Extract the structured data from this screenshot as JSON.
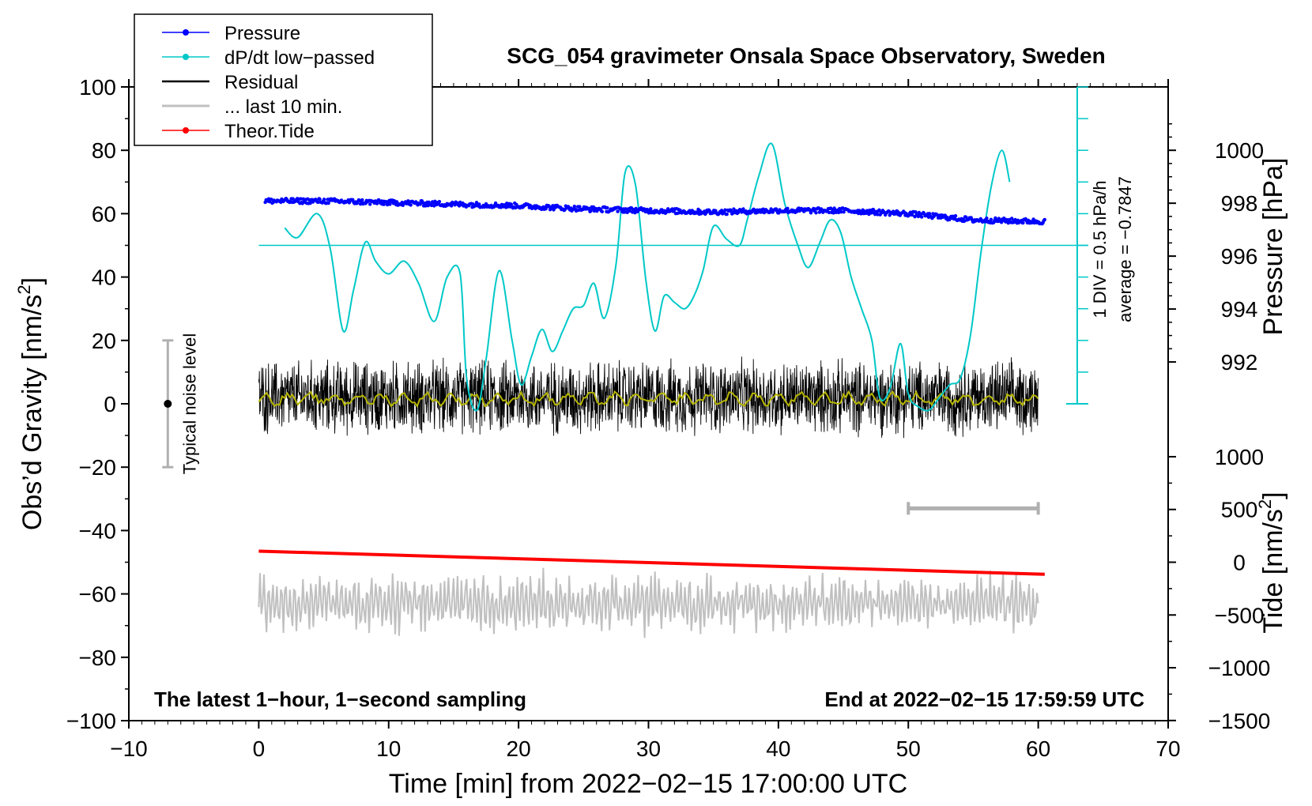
{
  "chart_data": {
    "type": "line",
    "title": "SCG_054 gravimeter Onsala Space Observatory, Sweden",
    "xlabel": "Time [min] from 2022−02−15 17:00:00 UTC",
    "ylabel_main": "Obs’d Gravity [nm/s",
    "ylabel_sup": "2",
    "ylabel_tail": "]",
    "ylabel_right_top": "Pressure [hPa]",
    "ylabel_right_bottom": "Tide [nm/s",
    "ylabel_right_bottom_sup": "2",
    "ylabel_right_bottom_tail": "]",
    "xlim": [
      -10,
      70
    ],
    "ylim": [
      -100,
      100
    ],
    "x_ticks": [
      "−10",
      "0",
      "10",
      "20",
      "30",
      "40",
      "50",
      "60",
      "70"
    ],
    "y_ticks": [
      "−100",
      "−80",
      "−60",
      "−40",
      "−20",
      "0",
      "20",
      "40",
      "60",
      "80",
      "100"
    ],
    "pressure_axis": {
      "ticks": [
        "1000",
        "998",
        "996",
        "994",
        "992"
      ],
      "values": [
        1000,
        998,
        996,
        994,
        992
      ],
      "ref_value": 1000,
      "ref_y": 80,
      "gravity_per_hpa": 10
    },
    "tide_axis": {
      "ticks": [
        "1000",
        "500",
        "0",
        "−500",
        "−1000",
        "−1500"
      ],
      "values": [
        1000,
        500,
        0,
        -500,
        -1000,
        -1500
      ],
      "ref_value": 1000,
      "ref_y": -16.7,
      "gravity_per_unit": 0.0333
    },
    "legend": [
      {
        "label": "Pressure",
        "color": "#0000ff",
        "marker": true
      },
      {
        "label": "dP/dt low−passed",
        "color": "#00c8c8",
        "marker": true
      },
      {
        "label": "Residual",
        "color": "#000000",
        "marker": false
      },
      {
        "label": "... last 10 min.",
        "color": "#c0c0c0",
        "marker": false
      },
      {
        "label": "Theor.Tide",
        "color": "#ff0000",
        "marker": true
      }
    ],
    "annotations": {
      "bottom_left": "The latest 1−hour, 1−second sampling",
      "bottom_right": "End at 2022−02−15 17:59:59 UTC",
      "noise": "Typical noise level",
      "div_line1": "1 DIV = 0.5 hPa/h",
      "div_line2": "average = −0.7847"
    },
    "noise_bar": {
      "x": -7,
      "y_low": -20,
      "y_high": 20
    },
    "ten_min_bar": {
      "x0": 50,
      "x1": 60,
      "y": -33
    },
    "dpdt_axis": {
      "x": 63,
      "y_top": 100,
      "y_bottom": 0,
      "zero_line_y": 50,
      "divisions": 10
    },
    "series": [
      {
        "name": "Pressure",
        "color": "#0000ff",
        "x": [
          0.5,
          5,
          10,
          15,
          20,
          25,
          30,
          35,
          40,
          45,
          50,
          55,
          60.5
        ],
        "y": [
          64,
          64,
          63.5,
          63,
          62.5,
          61.5,
          61,
          60.5,
          61,
          61,
          60,
          58,
          57.5
        ]
      },
      {
        "name": "dP/dt low−passed",
        "color": "#00c8c8",
        "x": [
          2,
          3,
          4.5,
          5.5,
          6.5,
          7.3,
          8.2,
          9,
          10,
          11.2,
          12.3,
          13.5,
          14.5,
          15.5,
          16,
          16.8,
          17.5,
          18.5,
          19.5,
          20.2,
          21,
          21.8,
          22.6,
          23.4,
          24.2,
          25,
          25.8,
          26.6,
          27.5,
          28.2,
          29,
          29.8,
          30.5,
          31.2,
          32,
          32.8,
          33.5,
          34.2,
          35,
          36,
          37,
          37.6,
          38.5,
          39.5,
          40.5,
          41.5,
          42.3,
          43.2,
          44,
          44.8,
          45.6,
          46.4,
          47.2,
          47.8,
          48.6,
          49.4,
          50,
          50.8,
          51.6,
          52.4,
          53.2,
          54,
          54.8,
          55.6,
          56.4,
          57.2,
          57.8
        ],
        "y": [
          55.5,
          52.5,
          60,
          49,
          23,
          36,
          51,
          45,
          41,
          45,
          38,
          26,
          40,
          41,
          8,
          -2,
          14,
          42,
          20,
          6,
          15,
          23.5,
          16.5,
          23,
          30,
          31,
          38,
          27,
          44,
          73,
          69,
          39,
          23,
          34,
          32,
          30,
          34,
          42,
          56,
          52,
          50,
          58,
          72,
          82,
          63,
          50,
          43,
          51,
          58,
          54,
          40,
          30,
          20,
          2,
          5,
          19,
          3,
          -1,
          -2,
          2,
          6,
          8,
          22,
          48,
          69,
          80,
          70
        ]
      },
      {
        "name": "Residual",
        "color": "#000000",
        "x_range": [
          0,
          60
        ],
        "center": 2,
        "amplitude": 9
      },
      {
        "name": "Residual smoothed",
        "color": "#b5b500",
        "x_range": [
          0,
          60
        ],
        "center": 1.5,
        "amplitude": 2
      },
      {
        "name": "... last 10 min.",
        "color": "#c0c0c0",
        "x_range": [
          0,
          60
        ],
        "center": -63,
        "amplitude": 9
      },
      {
        "name": "Theor.Tide",
        "color": "#ff0000",
        "x": [
          0,
          60.5
        ],
        "y": [
          -46.5,
          -53.8
        ]
      }
    ]
  }
}
